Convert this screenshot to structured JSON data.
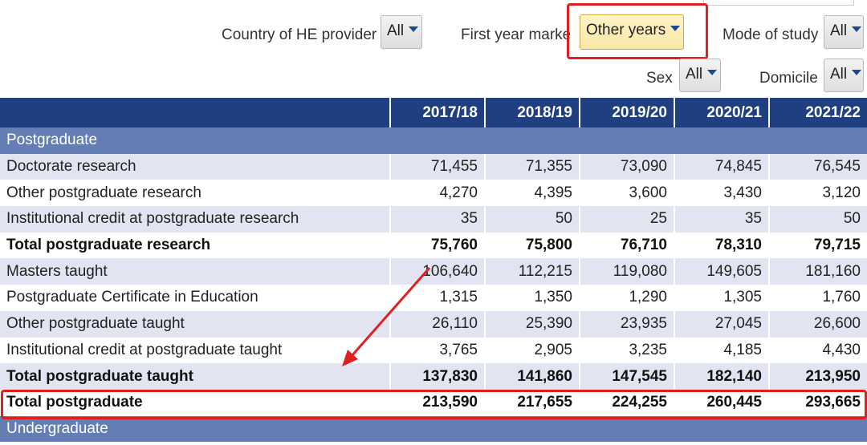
{
  "filters": {
    "country": {
      "label": "Country of HE provider",
      "value": "All"
    },
    "first_year": {
      "label": "First year marker",
      "value": "Other years"
    },
    "mode": {
      "label": "Mode of study",
      "value": "All"
    },
    "sex": {
      "label": "Sex",
      "value": "All"
    },
    "domicile": {
      "label": "Domicile",
      "value": "All"
    }
  },
  "table": {
    "columns": [
      "",
      "2017/18",
      "2018/19",
      "2019/20",
      "2020/21",
      "2021/22"
    ],
    "sections": {
      "postgraduate": "Postgraduate",
      "undergraduate": "Undergraduate"
    },
    "rows": [
      {
        "label": "Doctorate research",
        "values": [
          "71,455",
          "71,355",
          "73,090",
          "74,845",
          "76,545"
        ]
      },
      {
        "label": "Other postgraduate research",
        "values": [
          "4,270",
          "4,395",
          "3,600",
          "3,430",
          "3,120"
        ]
      },
      {
        "label": "Institutional credit at postgraduate research",
        "values": [
          "35",
          "50",
          "25",
          "35",
          "50"
        ]
      },
      {
        "label": "Total postgraduate research",
        "values": [
          "75,760",
          "75,800",
          "76,710",
          "78,310",
          "79,715"
        ]
      },
      {
        "label": "Masters taught",
        "values": [
          "106,640",
          "112,215",
          "119,080",
          "149,605",
          "181,160"
        ]
      },
      {
        "label": "Postgraduate Certificate in Education",
        "values": [
          "1,315",
          "1,350",
          "1,290",
          "1,305",
          "1,760"
        ]
      },
      {
        "label": "Other postgraduate taught",
        "values": [
          "26,110",
          "25,390",
          "23,935",
          "27,045",
          "26,600"
        ]
      },
      {
        "label": "Institutional credit at postgraduate taught",
        "values": [
          "3,765",
          "2,905",
          "3,235",
          "4,185",
          "4,430"
        ]
      },
      {
        "label": "Total postgraduate taught",
        "values": [
          "137,830",
          "141,860",
          "147,545",
          "182,140",
          "213,950"
        ]
      },
      {
        "label": "Total postgraduate",
        "values": [
          "213,590",
          "217,655",
          "224,255",
          "260,445",
          "293,665"
        ]
      }
    ]
  },
  "colors": {
    "header": "#1f3f81",
    "section": "#647db5",
    "row_alt": "#e2e5f1",
    "annotation": "#e02020"
  }
}
